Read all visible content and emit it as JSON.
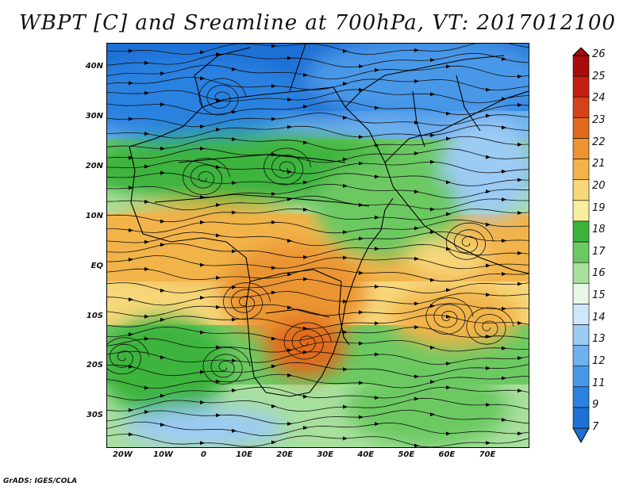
{
  "title": "WBPT [C] and Sreamline at 700hPa, VT: 2017012100",
  "credit": "GrADS: IGES/COLA",
  "map": {
    "lat_range": [
      -36,
      45
    ],
    "lon_range": [
      -24,
      80
    ],
    "lat_ticks": [
      {
        "value": 40,
        "label": "40N"
      },
      {
        "value": 30,
        "label": "30N"
      },
      {
        "value": 20,
        "label": "20N"
      },
      {
        "value": 10,
        "label": "10N"
      },
      {
        "value": 0,
        "label": "EQ"
      },
      {
        "value": -10,
        "label": "10S"
      },
      {
        "value": -20,
        "label": "20S"
      },
      {
        "value": -30,
        "label": "30S"
      }
    ],
    "lon_ticks": [
      {
        "value": -20,
        "label": "20W"
      },
      {
        "value": -10,
        "label": "10W"
      },
      {
        "value": 0,
        "label": "0"
      },
      {
        "value": 10,
        "label": "10E"
      },
      {
        "value": 20,
        "label": "20E"
      },
      {
        "value": 30,
        "label": "30E"
      },
      {
        "value": 40,
        "label": "40E"
      },
      {
        "value": 50,
        "label": "50E"
      },
      {
        "value": 60,
        "label": "60E"
      },
      {
        "value": 70,
        "label": "70E"
      }
    ]
  },
  "colorbar": {
    "levels": [
      "7",
      "9",
      "11",
      "12",
      "13",
      "14",
      "15",
      "16",
      "17",
      "18",
      "19",
      "20",
      "21",
      "22",
      "23",
      "24",
      "25",
      "26"
    ],
    "colors": [
      "#1e6fd6",
      "#2b82e0",
      "#4a98e8",
      "#6fb0ee",
      "#9ccbf4",
      "#cfe7fb",
      "#e6f7e6",
      "#a8e09e",
      "#6cc962",
      "#3cb43c",
      "#f7ef9e",
      "#f7d77a",
      "#f2b34a",
      "#eb9431",
      "#e16a1f",
      "#d4421a",
      "#c42012",
      "#a80d0a"
    ]
  },
  "fields": {
    "blobs": [
      {
        "lon": 10,
        "lat": 40,
        "rx": 80,
        "ry": 10,
        "c": "#1e6fd6"
      },
      {
        "lon": -5,
        "lat": 34,
        "rx": 30,
        "ry": 8,
        "c": "#2b82e0"
      },
      {
        "lon": 55,
        "lat": 38,
        "rx": 30,
        "ry": 8,
        "c": "#4a98e8"
      },
      {
        "lon": 70,
        "lat": 20,
        "rx": 12,
        "ry": 10,
        "c": "#9ccbf4"
      },
      {
        "lon": 10,
        "lat": 20,
        "rx": 40,
        "ry": 7,
        "c": "#3cb43c"
      },
      {
        "lon": 45,
        "lat": 12,
        "rx": 18,
        "ry": 10,
        "c": "#6cc962"
      },
      {
        "lon": 0,
        "lat": 5,
        "rx": 28,
        "ry": 8,
        "c": "#f2b34a"
      },
      {
        "lon": 22,
        "lat": -5,
        "rx": 18,
        "ry": 10,
        "c": "#eb9431"
      },
      {
        "lon": 25,
        "lat": -16,
        "rx": 10,
        "ry": 6,
        "c": "#e16a1f"
      },
      {
        "lon": 62,
        "lat": -10,
        "rx": 16,
        "ry": 6,
        "c": "#f2b34a"
      },
      {
        "lon": 60,
        "lat": 2,
        "rx": 10,
        "ry": 4,
        "c": "#f7d77a"
      },
      {
        "lon": -10,
        "lat": -20,
        "rx": 16,
        "ry": 10,
        "c": "#3cb43c"
      },
      {
        "lon": 55,
        "lat": -28,
        "rx": 20,
        "ry": 8,
        "c": "#6cc962"
      },
      {
        "lon": 0,
        "lat": -32,
        "rx": 20,
        "ry": 4,
        "c": "#9ccbf4"
      }
    ],
    "vortices": [
      {
        "lon": 4,
        "lat": 34
      },
      {
        "lon": 0,
        "lat": 18
      },
      {
        "lon": 20,
        "lat": 20
      },
      {
        "lon": -20,
        "lat": -18
      },
      {
        "lon": 5,
        "lat": -20
      },
      {
        "lon": 25,
        "lat": -15
      },
      {
        "lon": 60,
        "lat": -10
      },
      {
        "lon": 70,
        "lat": -12
      },
      {
        "lon": 65,
        "lat": 5
      },
      {
        "lon": 10,
        "lat": -7
      }
    ]
  }
}
